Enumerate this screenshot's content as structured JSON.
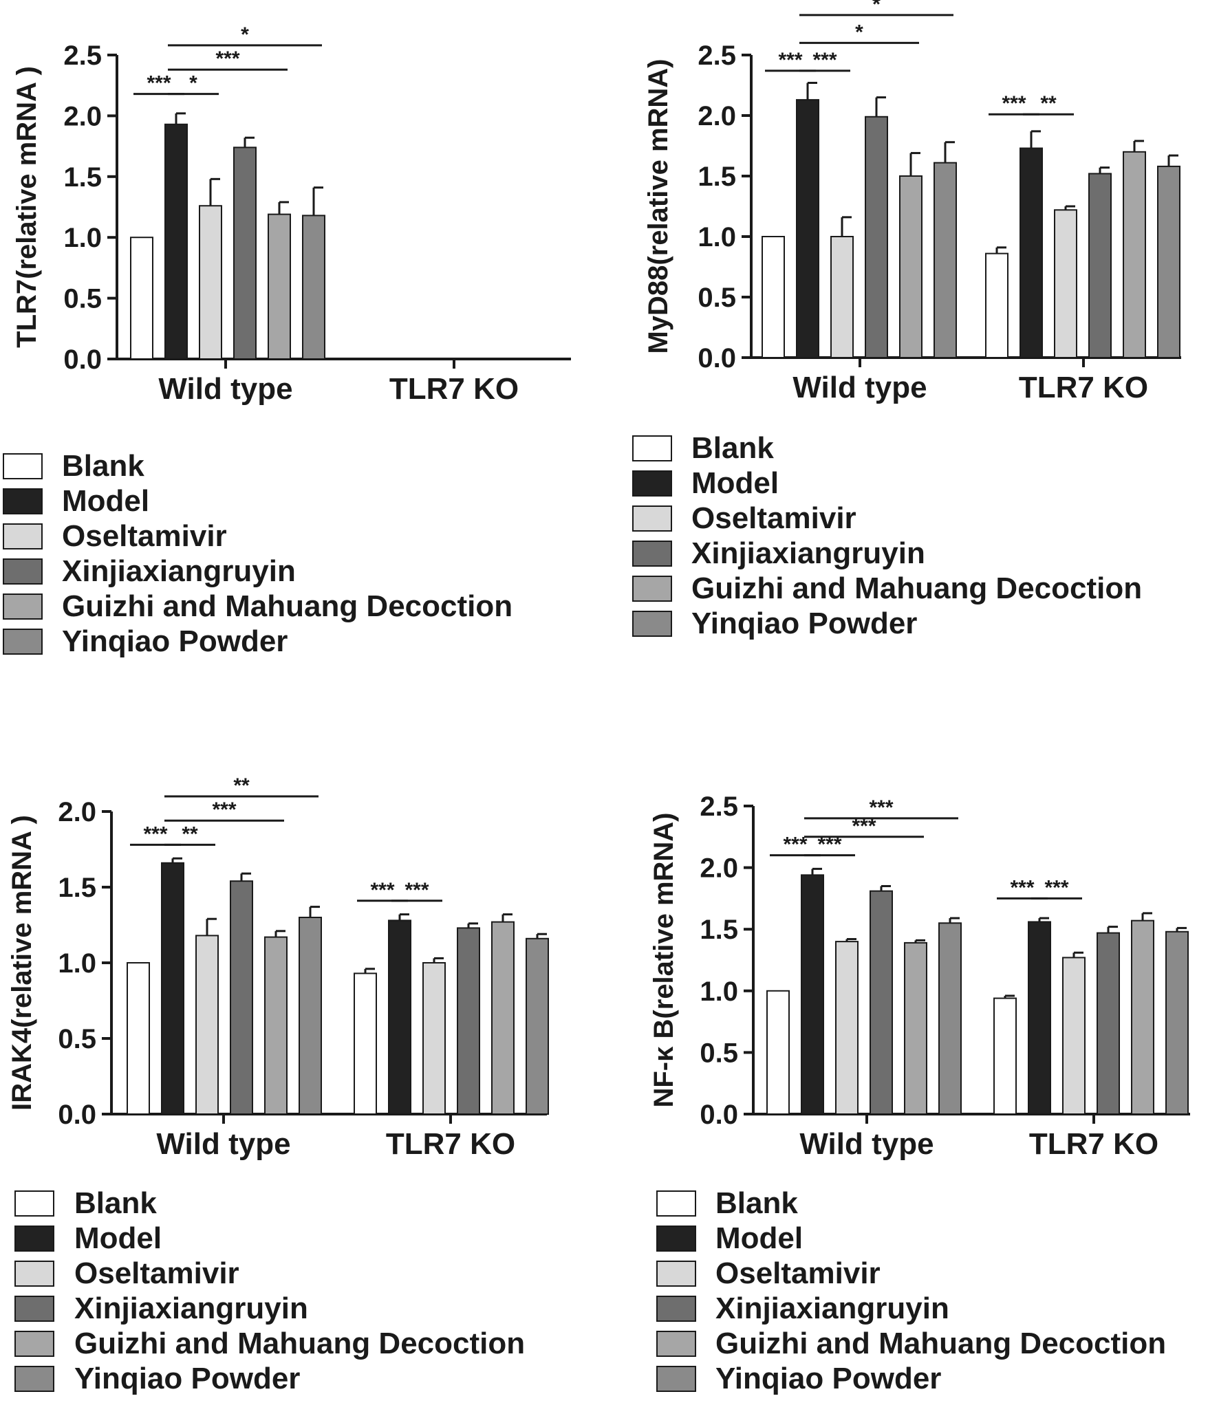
{
  "chart_data": [
    {
      "type": "bar",
      "ylabel": "TLR7(relative mRNA )",
      "categories": [
        "Wild type",
        "TLR7 KO"
      ],
      "ylim": [
        0,
        2.5
      ],
      "yticks": [
        "0.0",
        "0.5",
        "1.0",
        "1.5",
        "2.0",
        "2.5"
      ],
      "series": [
        {
          "name": "Blank",
          "values": [
            1.0,
            null
          ],
          "errors": [
            0,
            null
          ]
        },
        {
          "name": "Model",
          "values": [
            1.93,
            null
          ],
          "errors": [
            0.09,
            null
          ]
        },
        {
          "name": "Oseltamivir",
          "values": [
            1.26,
            null
          ],
          "errors": [
            0.22,
            null
          ]
        },
        {
          "name": "Xinjiaxiangruyin",
          "values": [
            1.74,
            null
          ],
          "errors": [
            0.08,
            null
          ]
        },
        {
          "name": "Guizhi and Mahuang Decoction",
          "values": [
            1.19,
            null
          ],
          "errors": [
            0.1,
            null
          ]
        },
        {
          "name": "Yinqiao Powder",
          "values": [
            1.18,
            null
          ],
          "errors": [
            0.23,
            null
          ]
        }
      ],
      "significance": [
        {
          "group": 0,
          "from": 0,
          "to": 1,
          "label": "***",
          "y": 2.18
        },
        {
          "group": 0,
          "from": 1,
          "to": 2,
          "label": "*",
          "y": 2.18
        },
        {
          "group": 0,
          "from": 1,
          "to": 4,
          "label": "***",
          "y": 2.38
        },
        {
          "group": 0,
          "from": 1,
          "to": 5,
          "label": "*",
          "y": 2.58
        }
      ]
    },
    {
      "type": "bar",
      "ylabel": "MyD88(relative mRNA)",
      "categories": [
        "Wild type",
        "TLR7 KO"
      ],
      "ylim": [
        0,
        2.5
      ],
      "yticks": [
        "0.0",
        "0.5",
        "1.0",
        "1.5",
        "2.0",
        "2.5"
      ],
      "series": [
        {
          "name": "Blank",
          "values": [
            1.0,
            0.86
          ],
          "errors": [
            0,
            0.05
          ]
        },
        {
          "name": "Model",
          "values": [
            2.13,
            1.73
          ],
          "errors": [
            0.14,
            0.14
          ]
        },
        {
          "name": "Oseltamivir",
          "values": [
            1.0,
            1.22
          ],
          "errors": [
            0.16,
            0.03
          ]
        },
        {
          "name": "Xinjiaxiangruyin",
          "values": [
            1.99,
            1.52
          ],
          "errors": [
            0.16,
            0.05
          ]
        },
        {
          "name": "Guizhi and Mahuang Decoction",
          "values": [
            1.5,
            1.7
          ],
          "errors": [
            0.19,
            0.09
          ]
        },
        {
          "name": "Yinqiao Powder",
          "values": [
            1.61,
            1.58
          ],
          "errors": [
            0.17,
            0.09
          ]
        }
      ],
      "significance": [
        {
          "group": 0,
          "from": 0,
          "to": 1,
          "label": "***",
          "y": 2.37
        },
        {
          "group": 0,
          "from": 1,
          "to": 2,
          "label": "***",
          "y": 2.37
        },
        {
          "group": 0,
          "from": 1,
          "to": 4,
          "label": "*",
          "y": 2.6
        },
        {
          "group": 0,
          "from": 1,
          "to": 5,
          "label": "*",
          "y": 2.83
        },
        {
          "group": 1,
          "from": 0,
          "to": 1,
          "label": "***",
          "y": 2.01
        },
        {
          "group": 1,
          "from": 1,
          "to": 2,
          "label": "**",
          "y": 2.01
        }
      ]
    },
    {
      "type": "bar",
      "ylabel": "IRAK4(relative mRNA )",
      "categories": [
        "Wild type",
        "TLR7 KO"
      ],
      "ylim": [
        0,
        2.0
      ],
      "yticks": [
        "0.0",
        "0.5",
        "1.0",
        "1.5",
        "2.0"
      ],
      "series": [
        {
          "name": "Blank",
          "values": [
            1.0,
            0.93
          ],
          "errors": [
            0,
            0.03
          ]
        },
        {
          "name": "Model",
          "values": [
            1.66,
            1.28
          ],
          "errors": [
            0.03,
            0.04
          ]
        },
        {
          "name": "Oseltamivir",
          "values": [
            1.18,
            1.0
          ],
          "errors": [
            0.11,
            0.03
          ]
        },
        {
          "name": "Xinjiaxiangruyin",
          "values": [
            1.54,
            1.23
          ],
          "errors": [
            0.05,
            0.03
          ]
        },
        {
          "name": "Guizhi and Mahuang Decoction",
          "values": [
            1.17,
            1.27
          ],
          "errors": [
            0.04,
            0.05
          ]
        },
        {
          "name": "Yinqiao Powder",
          "values": [
            1.3,
            1.16
          ],
          "errors": [
            0.07,
            0.03
          ]
        }
      ],
      "significance": [
        {
          "group": 0,
          "from": 0,
          "to": 1,
          "label": "***",
          "y": 1.78
        },
        {
          "group": 0,
          "from": 1,
          "to": 2,
          "label": "**",
          "y": 1.78
        },
        {
          "group": 0,
          "from": 1,
          "to": 4,
          "label": "***",
          "y": 1.94
        },
        {
          "group": 0,
          "from": 1,
          "to": 5,
          "label": "**",
          "y": 2.1
        },
        {
          "group": 1,
          "from": 0,
          "to": 1,
          "label": "***",
          "y": 1.41
        },
        {
          "group": 1,
          "from": 1,
          "to": 2,
          "label": "***",
          "y": 1.41
        }
      ]
    },
    {
      "type": "bar",
      "ylabel": "NF-κ B(relative mRNA)",
      "categories": [
        "Wild type",
        "TLR7 KO"
      ],
      "ylim": [
        0,
        2.5
      ],
      "yticks": [
        "0.0",
        "0.5",
        "1.0",
        "1.5",
        "2.0",
        "2.5"
      ],
      "series": [
        {
          "name": "Blank",
          "values": [
            1.0,
            0.94
          ],
          "errors": [
            0,
            0.02
          ]
        },
        {
          "name": "Model",
          "values": [
            1.94,
            1.56
          ],
          "errors": [
            0.05,
            0.03
          ]
        },
        {
          "name": "Oseltamivir",
          "values": [
            1.4,
            1.27
          ],
          "errors": [
            0.02,
            0.04
          ]
        },
        {
          "name": "Xinjiaxiangruyin",
          "values": [
            1.81,
            1.47
          ],
          "errors": [
            0.04,
            0.05
          ]
        },
        {
          "name": "Guizhi and Mahuang Decoction",
          "values": [
            1.39,
            1.57
          ],
          "errors": [
            0.02,
            0.06
          ]
        },
        {
          "name": "Yinqiao Powder",
          "values": [
            1.55,
            1.48
          ],
          "errors": [
            0.04,
            0.03
          ]
        }
      ],
      "significance": [
        {
          "group": 0,
          "from": 0,
          "to": 1,
          "label": "***",
          "y": 2.1
        },
        {
          "group": 0,
          "from": 1,
          "to": 2,
          "label": "***",
          "y": 2.1
        },
        {
          "group": 0,
          "from": 1,
          "to": 4,
          "label": "***",
          "y": 2.25
        },
        {
          "group": 0,
          "from": 1,
          "to": 5,
          "label": "***",
          "y": 2.4
        },
        {
          "group": 1,
          "from": 0,
          "to": 1,
          "label": "***",
          "y": 1.75
        },
        {
          "group": 1,
          "from": 1,
          "to": 2,
          "label": "***",
          "y": 1.75
        }
      ]
    }
  ],
  "legend": {
    "items": [
      "Blank",
      "Model",
      "Oseltamivir",
      "Xinjiaxiangruyin",
      "Guizhi and Mahuang Decoction",
      "Yinqiao Powder"
    ],
    "colors": [
      "#ffffff",
      "#222222",
      "#d8d8d8",
      "#6e6e6e",
      "#a6a6a6",
      "#8a8a8a"
    ]
  },
  "colors": {
    "axis": "#1a1a1a",
    "bar_stroke": "#1a1a1a"
  }
}
